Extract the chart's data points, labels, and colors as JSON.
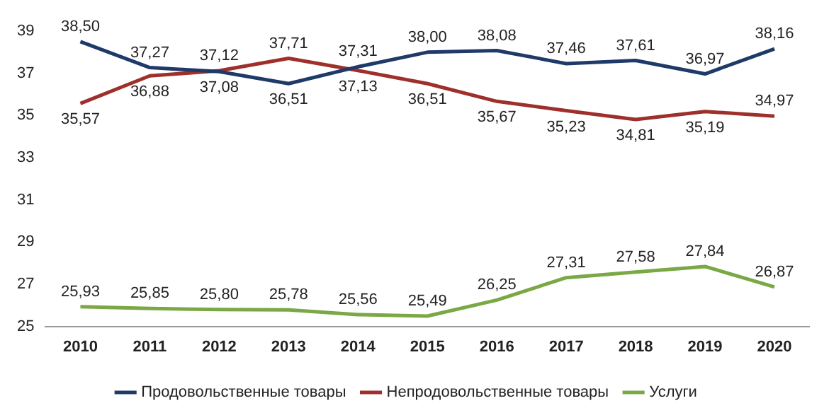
{
  "chart_data": {
    "type": "line",
    "categories": [
      "2010",
      "2011",
      "2012",
      "2013",
      "2014",
      "2015",
      "2016",
      "2017",
      "2018",
      "2019",
      "2020"
    ],
    "series": [
      {
        "name": "Продовольственные товары",
        "color": "#1f3a68",
        "values": [
          38.5,
          37.27,
          37.08,
          36.51,
          37.31,
          38.0,
          38.08,
          37.46,
          37.61,
          36.97,
          38.16
        ],
        "value_labels": [
          "38,50",
          "37,27",
          "37,08",
          "36,51",
          "37,31",
          "38,00",
          "38,08",
          "37,46",
          "37,61",
          "36,97",
          "38,16"
        ]
      },
      {
        "name": "Непродовольственные товары",
        "color": "#9e2f2b",
        "values": [
          35.57,
          36.88,
          37.12,
          37.71,
          37.13,
          36.51,
          35.67,
          35.23,
          34.81,
          35.19,
          34.97
        ],
        "value_labels": [
          "35,57",
          "36,88",
          "37,12",
          "37,71",
          "37,13",
          "36,51",
          "35,67",
          "35,23",
          "34,81",
          "35,19",
          "34,97"
        ]
      },
      {
        "name": "Услуги",
        "color": "#7aa845",
        "values": [
          25.93,
          25.85,
          25.8,
          25.78,
          25.56,
          25.49,
          26.25,
          27.31,
          27.58,
          27.84,
          26.87
        ],
        "value_labels": [
          "25,93",
          "25,85",
          "25,80",
          "25,78",
          "25,56",
          "25,49",
          "26,25",
          "27,31",
          "27,58",
          "27,84",
          "26,87"
        ]
      }
    ],
    "ylim": [
      25,
      39
    ],
    "yticks": [
      25,
      27,
      29,
      31,
      33,
      35,
      37,
      39
    ],
    "grid": false,
    "legend": "bottom",
    "marker": "none",
    "line_style": "solid"
  }
}
